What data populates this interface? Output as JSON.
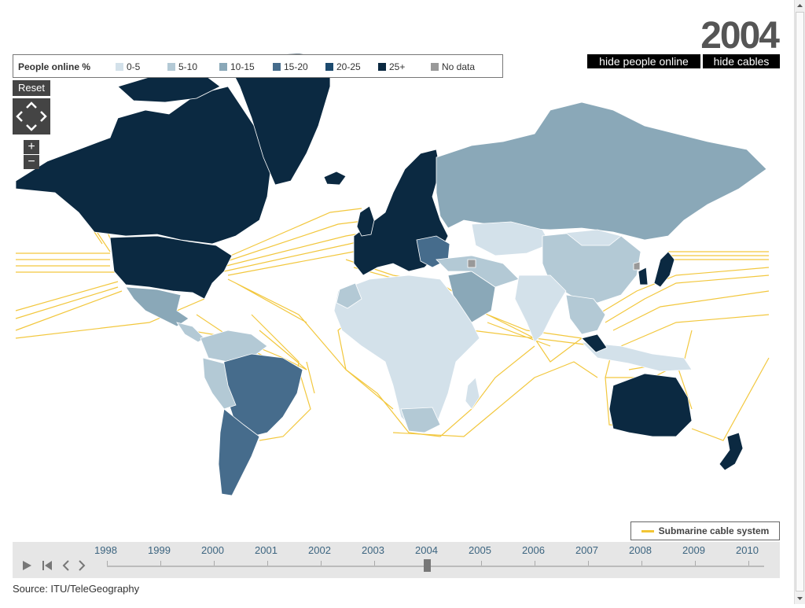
{
  "year_display": "2004",
  "toggles": {
    "hide_people": "hide people online",
    "hide_cables": "hide cables"
  },
  "legend": {
    "title": "People online %",
    "items": [
      {
        "label": "0-5",
        "color": "#d3e1ea"
      },
      {
        "label": "5-10",
        "color": "#b3c9d5"
      },
      {
        "label": "10-15",
        "color": "#8aa8b8"
      },
      {
        "label": "15-20",
        "color": "#466c8c"
      },
      {
        "label": "20-25",
        "color": "#1c4a6e"
      },
      {
        "label": "25+",
        "color": "#0b2941"
      },
      {
        "label": "No data",
        "color": "#999999"
      }
    ]
  },
  "controls": {
    "reset": "Reset",
    "zoom_in": "+",
    "zoom_out": "−"
  },
  "cable_legend": {
    "label": "Submarine cable system",
    "color": "#f2c534"
  },
  "timeline": {
    "years": [
      "1998",
      "1999",
      "2000",
      "2001",
      "2002",
      "2003",
      "2004",
      "2005",
      "2006",
      "2007",
      "2008",
      "2009",
      "2010"
    ],
    "selected": "2004"
  },
  "source": "Source: ITU/TeleGeography",
  "colors": {
    "ocean": "#ffffff",
    "cable": "#f2c534",
    "border": "#ffffff"
  }
}
